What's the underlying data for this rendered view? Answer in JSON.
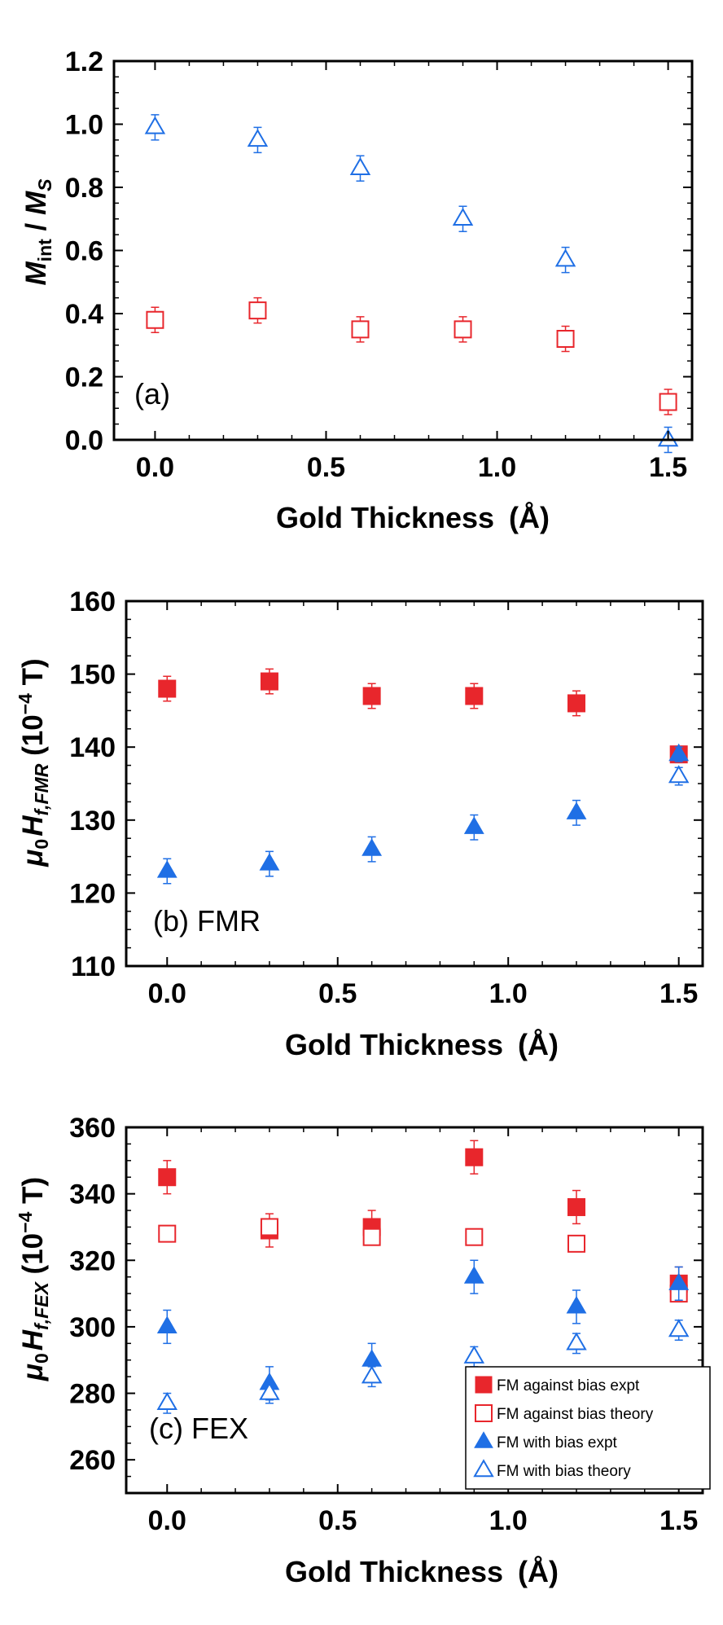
{
  "chart_data": [
    {
      "id": "a",
      "type": "scatter",
      "annotation": "(a)",
      "xlabel": "Gold Thickness",
      "xlabel_unit": "(Å)",
      "ylabel_main": "M",
      "ylabel_sub": "int",
      "ylabel_sep": " / ",
      "ylabel_main2": "M",
      "ylabel_sub2": "S",
      "xlim": [
        -0.12,
        1.57
      ],
      "ylim": [
        0.0,
        1.2
      ],
      "xticks": [
        0.0,
        0.5,
        1.0,
        1.5
      ],
      "xtick_labels": [
        "0.0",
        "0.5",
        "1.0",
        "1.5"
      ],
      "yticks": [
        0.0,
        0.2,
        0.4,
        0.6,
        0.8,
        1.0,
        1.2
      ],
      "ytick_labels": [
        "0.0",
        "0.2",
        "0.4",
        "0.6",
        "0.8",
        "1.0",
        "1.2"
      ],
      "series": [
        {
          "name": "open triangles",
          "marker": "triangle",
          "filled": false,
          "color": "#1f6fe5",
          "x": [
            0.0,
            0.3,
            0.6,
            0.9,
            1.2,
            1.5
          ],
          "y": [
            0.99,
            0.95,
            0.86,
            0.7,
            0.57,
            0.0
          ],
          "err": [
            0.04,
            0.04,
            0.04,
            0.04,
            0.04,
            0.04
          ]
        },
        {
          "name": "open squares",
          "marker": "square",
          "filled": false,
          "color": "#e8262c",
          "x": [
            0.0,
            0.3,
            0.6,
            0.9,
            1.2,
            1.5
          ],
          "y": [
            0.38,
            0.41,
            0.35,
            0.35,
            0.32,
            0.12
          ],
          "err": [
            0.04,
            0.04,
            0.04,
            0.04,
            0.04,
            0.04
          ]
        }
      ]
    },
    {
      "id": "b",
      "type": "scatter",
      "annotation": "(b) FMR",
      "xlabel": "Gold Thickness",
      "xlabel_unit": "(Å)",
      "ylabel_mu": "μ",
      "ylabel_mu_sub": "0",
      "ylabel_H": "H",
      "ylabel_H_sub": "f,FMR",
      "ylabel_unit_pre": " (10",
      "ylabel_unit_sup": "−4",
      "ylabel_unit_post": " T)",
      "xlim": [
        -0.12,
        1.57
      ],
      "ylim": [
        110,
        160
      ],
      "xticks": [
        0.0,
        0.5,
        1.0,
        1.5
      ],
      "xtick_labels": [
        "0.0",
        "0.5",
        "1.0",
        "1.5"
      ],
      "yticks": [
        110,
        120,
        130,
        140,
        150,
        160
      ],
      "ytick_labels": [
        "110",
        "120",
        "130",
        "140",
        "150",
        "160"
      ],
      "series": [
        {
          "name": "FM against bias expt",
          "marker": "square",
          "filled": true,
          "color": "#e8262c",
          "x": [
            0.0,
            0.3,
            0.6,
            0.9,
            1.2,
            1.5
          ],
          "y": [
            148,
            149,
            147,
            147,
            146,
            139
          ],
          "err": [
            1.7,
            1.7,
            1.7,
            1.7,
            1.7,
            1.0
          ]
        },
        {
          "name": "FM with bias expt",
          "marker": "triangle",
          "filled": true,
          "color": "#1f6fe5",
          "x": [
            0.0,
            0.3,
            0.6,
            0.9,
            1.2,
            1.5
          ],
          "y": [
            123,
            124,
            126,
            129,
            131,
            139
          ],
          "err": [
            1.7,
            1.7,
            1.7,
            1.7,
            1.7,
            1.0
          ]
        },
        {
          "name": "FM with bias theory",
          "marker": "triangle",
          "filled": false,
          "color": "#1f6fe5",
          "x": [
            1.5
          ],
          "y": [
            136
          ],
          "err": [
            1.2
          ]
        }
      ]
    },
    {
      "id": "c",
      "type": "scatter",
      "annotation": "(c) FEX",
      "xlabel": "Gold Thickness",
      "xlabel_unit": "(Å)",
      "ylabel_mu": "μ",
      "ylabel_mu_sub": "0",
      "ylabel_H": "H",
      "ylabel_H_sub": "f,FEX",
      "ylabel_unit_pre": " (10",
      "ylabel_unit_sup": "−4",
      "ylabel_unit_post": " T)",
      "xlim": [
        -0.12,
        1.57
      ],
      "ylim": [
        250,
        360
      ],
      "xticks": [
        0.0,
        0.5,
        1.0,
        1.5
      ],
      "xtick_labels": [
        "0.0",
        "0.5",
        "1.0",
        "1.5"
      ],
      "yticks": [
        260,
        280,
        300,
        320,
        340,
        360
      ],
      "ytick_labels": [
        "260",
        "280",
        "300",
        "320",
        "340",
        "360"
      ],
      "legend": [
        {
          "label": "FM against bias expt",
          "marker": "square",
          "filled": true,
          "color": "#e8262c"
        },
        {
          "label": "FM against bias theory",
          "marker": "square",
          "filled": false,
          "color": "#e8262c"
        },
        {
          "label": "FM with bias expt",
          "marker": "triangle",
          "filled": true,
          "color": "#1f6fe5"
        },
        {
          "label": "FM with bias theory",
          "marker": "triangle",
          "filled": false,
          "color": "#1f6fe5"
        }
      ],
      "series": [
        {
          "name": "FM against bias expt",
          "marker": "square",
          "filled": true,
          "color": "#e8262c",
          "x": [
            0.0,
            0.3,
            0.6,
            0.9,
            1.2,
            1.5
          ],
          "y": [
            345,
            329,
            330,
            351,
            336,
            313
          ],
          "err": [
            5,
            5,
            5,
            5,
            5,
            5
          ]
        },
        {
          "name": "FM against bias theory",
          "marker": "square",
          "filled": false,
          "color": "#e8262c",
          "x": [
            0.0,
            0.3,
            0.6,
            0.9,
            1.2,
            1.5
          ],
          "y": [
            328,
            330,
            327,
            327,
            325,
            310
          ],
          "err": [
            2,
            2,
            2,
            2,
            2,
            2
          ]
        },
        {
          "name": "FM with bias expt",
          "marker": "triangle",
          "filled": true,
          "color": "#1f6fe5",
          "x": [
            0.0,
            0.3,
            0.6,
            0.9,
            1.2,
            1.5
          ],
          "y": [
            300,
            283,
            290,
            315,
            306,
            313
          ],
          "err": [
            5,
            5,
            5,
            5,
            5,
            5
          ]
        },
        {
          "name": "FM with bias theory",
          "marker": "triangle",
          "filled": false,
          "color": "#1f6fe5",
          "x": [
            0.0,
            0.3,
            0.6,
            0.9,
            1.2,
            1.5
          ],
          "y": [
            277,
            280,
            285,
            291,
            295,
            299
          ],
          "err": [
            3,
            3,
            3,
            3,
            3,
            3
          ]
        }
      ]
    }
  ]
}
